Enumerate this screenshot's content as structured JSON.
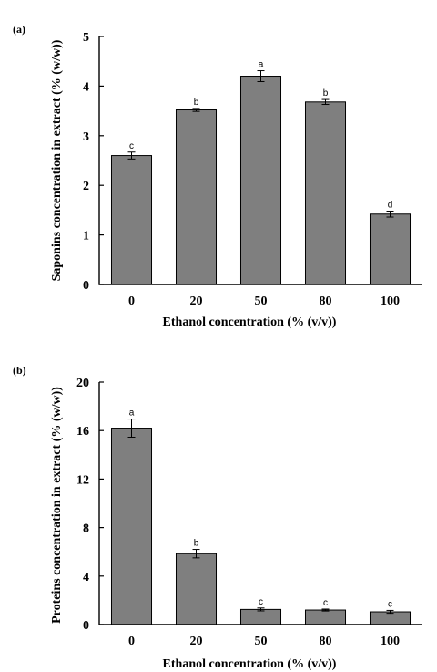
{
  "chart_data": [
    {
      "type": "bar",
      "panel_label": "(a)",
      "categories": [
        "0",
        "20",
        "50",
        "80",
        "100"
      ],
      "values": [
        2.6,
        3.52,
        4.2,
        3.68,
        1.42
      ],
      "errors": [
        0.07,
        0.03,
        0.11,
        0.05,
        0.06
      ],
      "significance_letters": [
        "c",
        "b",
        "a",
        "b",
        "d"
      ],
      "xlabel": "Ethanol concentration (% (v/v))",
      "ylabel": "Saponins concentration in extract (% (w/w))",
      "ylim": [
        0,
        5
      ],
      "yticks": [
        "0",
        "1",
        "2",
        "3",
        "4",
        "5"
      ],
      "grid": false,
      "colors": {
        "bar": "#7f7f7f",
        "outline": "#000000"
      }
    },
    {
      "type": "bar",
      "panel_label": "(b)",
      "categories": [
        "0",
        "20",
        "50",
        "80",
        "100"
      ],
      "values": [
        16.2,
        5.85,
        1.25,
        1.2,
        1.05
      ],
      "errors": [
        0.75,
        0.35,
        0.12,
        0.08,
        0.12
      ],
      "significance_letters": [
        "a",
        "b",
        "c",
        "c",
        "c"
      ],
      "xlabel": "Ethanol concentration (% (v/v))",
      "ylabel": "Proteins concentration in extract (% (w/w))",
      "ylim": [
        0,
        20
      ],
      "yticks": [
        "0",
        "4",
        "8",
        "12",
        "16",
        "20"
      ],
      "grid": false,
      "colors": {
        "bar": "#7f7f7f",
        "outline": "#000000"
      }
    }
  ]
}
